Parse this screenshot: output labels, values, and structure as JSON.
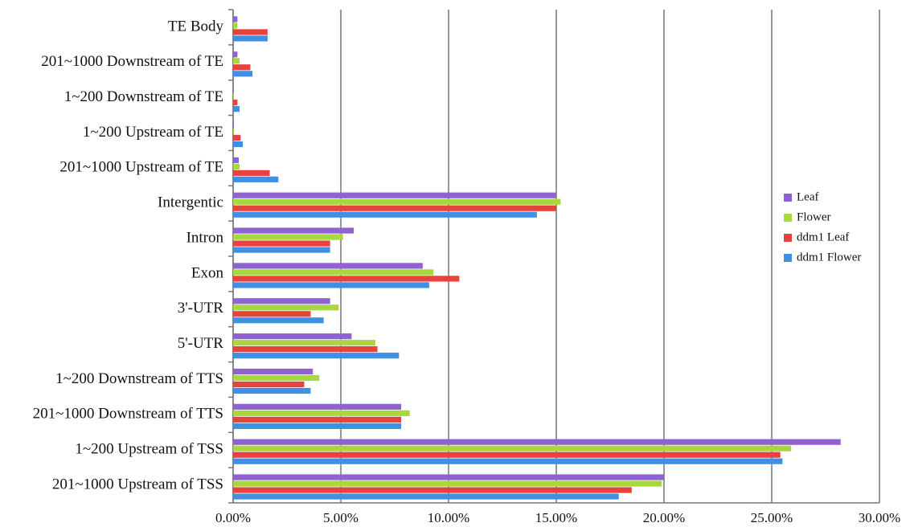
{
  "chart_data": {
    "type": "hbar",
    "categories": [
      "TE Body",
      "201~1000 Downstream of TE",
      "1~200 Downstream of TE",
      "1~200 Upstream of TE",
      "201~1000 Upstream of TE",
      "Intergentic",
      "Intron",
      "Exon",
      "3'-UTR",
      "5'-UTR",
      "1~200 Downstream of TTS",
      "201~1000 Downstream of TTS",
      "1~200 Upstream of TSS",
      "201~1000 Upstream of TSS"
    ],
    "series": [
      {
        "name": "Leaf",
        "color": "#8e62d0",
        "values": [
          0.2,
          0.2,
          0.03,
          0.04,
          0.26,
          15.0,
          5.6,
          8.8,
          4.5,
          5.5,
          3.7,
          7.8,
          28.2,
          20.0
        ]
      },
      {
        "name": "Flower",
        "color": "#a8d83e",
        "values": [
          0.2,
          0.3,
          0.04,
          0.05,
          0.3,
          15.2,
          5.1,
          9.3,
          4.9,
          6.6,
          4.0,
          8.2,
          25.9,
          19.9
        ]
      },
      {
        "name": "ddm1 Leaf",
        "color": "#e8423c",
        "values": [
          1.6,
          0.8,
          0.2,
          0.35,
          1.7,
          15.0,
          4.5,
          10.5,
          3.6,
          6.7,
          3.3,
          7.8,
          25.4,
          18.5
        ]
      },
      {
        "name": "ddm1 Flower",
        "color": "#3f8fe2",
        "values": [
          1.6,
          0.9,
          0.3,
          0.45,
          2.1,
          14.1,
          4.5,
          9.1,
          4.2,
          7.7,
          3.6,
          7.8,
          25.5,
          17.9
        ]
      }
    ],
    "xlim": [
      0,
      30
    ],
    "xticks": [
      {
        "value": 0,
        "label": "0.00%"
      },
      {
        "value": 5,
        "label": "5.00%"
      },
      {
        "value": 10,
        "label": "10.00%"
      },
      {
        "value": 15,
        "label": "15.00%"
      },
      {
        "value": 20,
        "label": "20.00%"
      },
      {
        "value": 25,
        "label": "25.00%"
      },
      {
        "value": 30,
        "label": "30.00%"
      }
    ],
    "grid": true,
    "legend": "right"
  }
}
